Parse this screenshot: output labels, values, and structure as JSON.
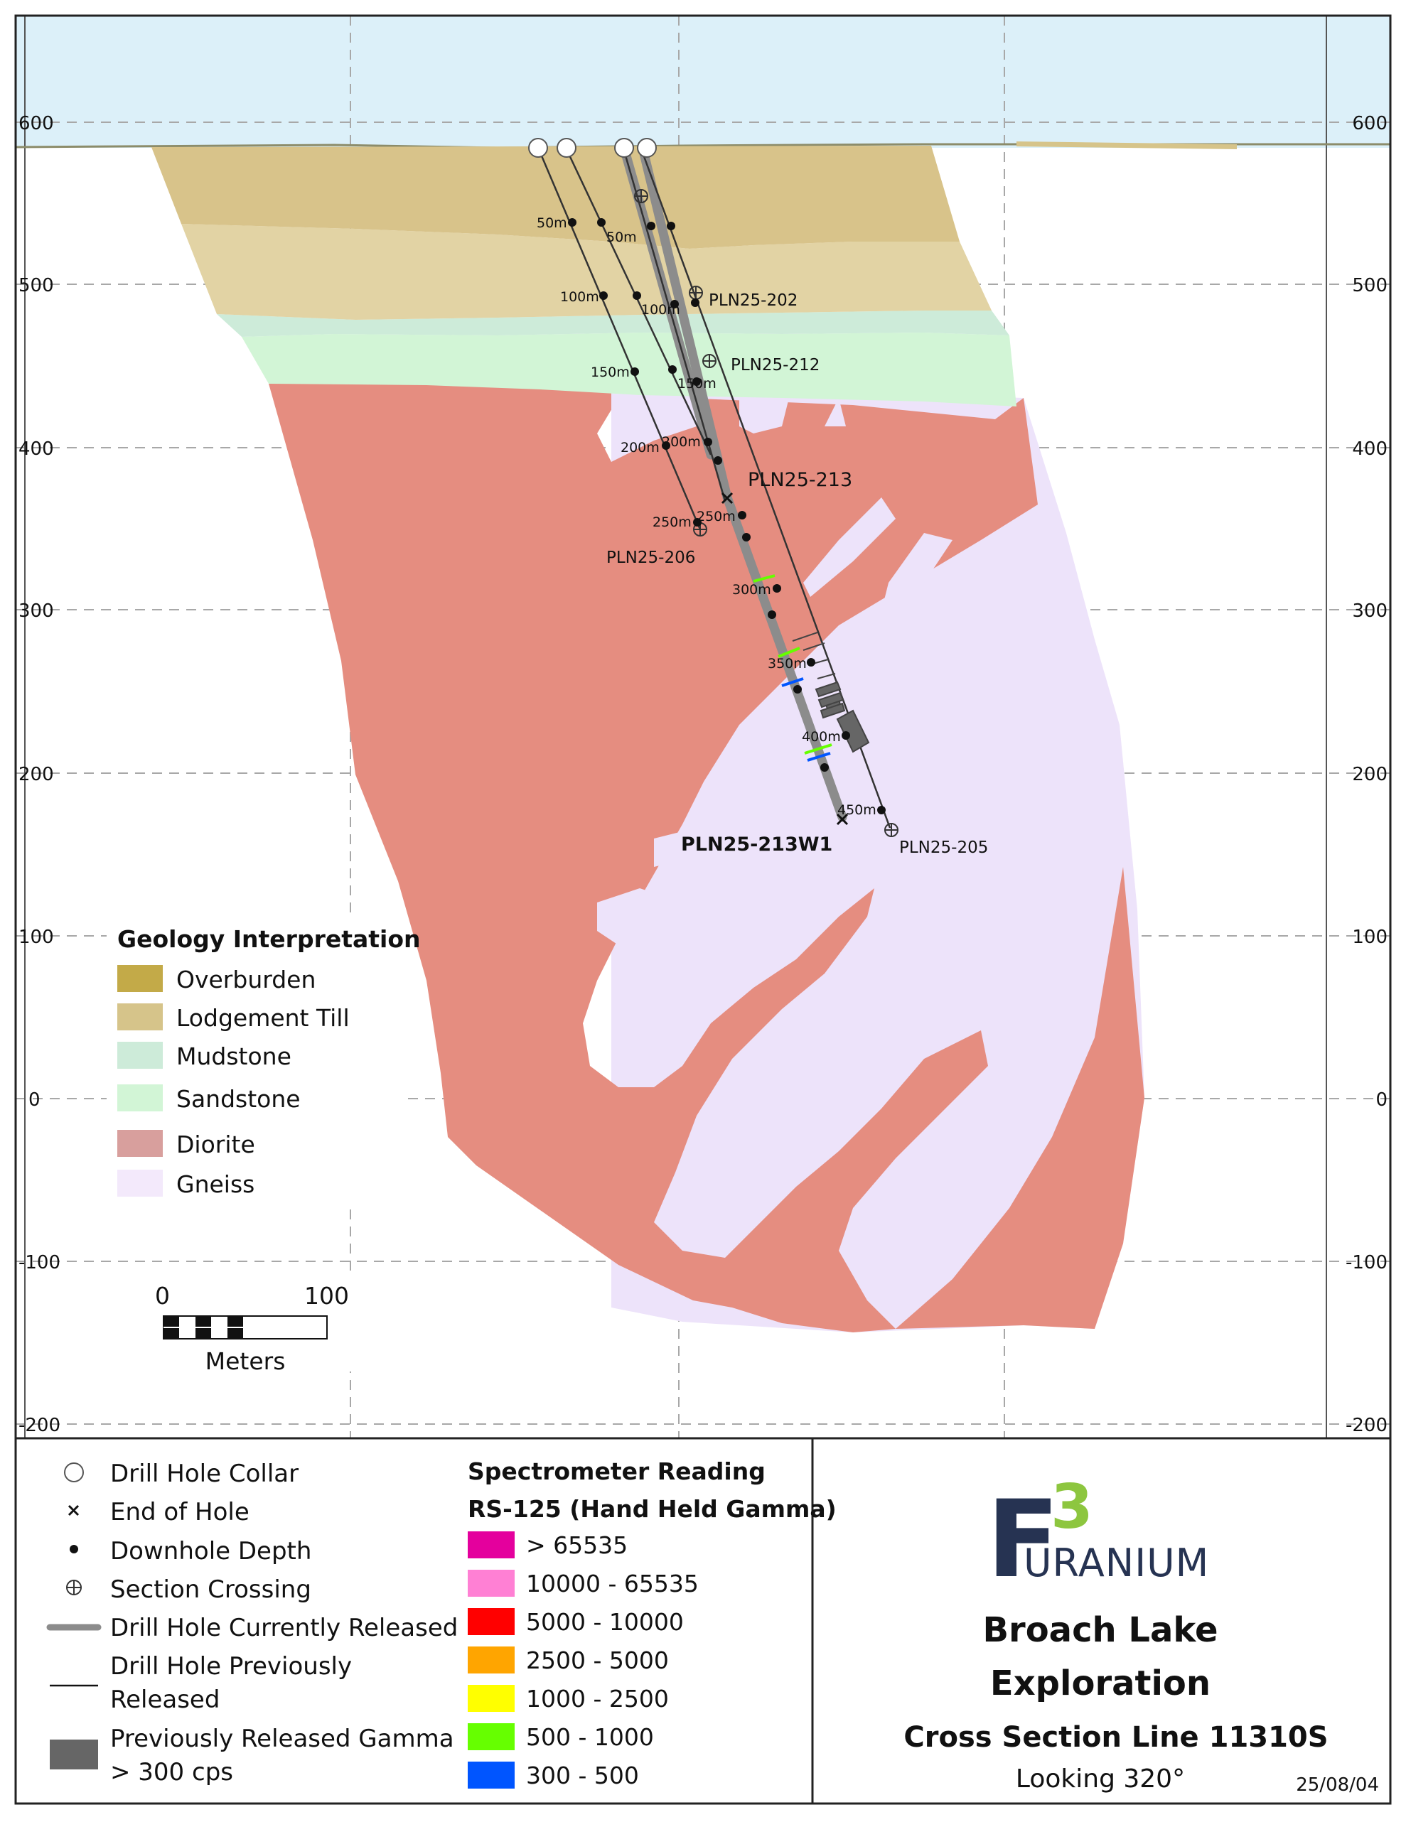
{
  "axis": {
    "elevation_labels": [
      "600",
      "500",
      "400",
      "300",
      "200",
      "100",
      "0",
      "-100",
      "-200"
    ]
  },
  "drill_holes": {
    "pln25_202": "PLN25-202",
    "pln25_212": "PLN25-212",
    "pln25_213": "PLN25-213",
    "pln25_206": "PLN25-206",
    "pln25_213w1": "PLN25-213W1",
    "pln25_205": "PLN25-205"
  },
  "depth_labels": {
    "d50a": "50m",
    "d50b": "50m",
    "d100a": "100m",
    "d100b": "100m",
    "d150a": "150m",
    "d150b": "150m",
    "d200a": "200m",
    "d200b": "200m",
    "d250a": "250m",
    "d250b": "250m",
    "d300": "300m",
    "d350": "350m",
    "d400": "400m",
    "d450": "450m"
  },
  "geology_legend": {
    "title": "Geology Interpretation",
    "items": [
      {
        "label": "Overburden",
        "color": "#c3aa48"
      },
      {
        "label": "Lodgement Till",
        "color": "#d6c48a"
      },
      {
        "label": "Mudstone",
        "color": "#cdebd9"
      },
      {
        "label": "Sandstone",
        "color": "#d2f5d6"
      },
      {
        "label": "Diorite",
        "color": "#d89f9d"
      },
      {
        "label": "Gneiss",
        "color": "#f3e9fb"
      }
    ]
  },
  "scale_bar": {
    "min": "0",
    "max": "100",
    "unit": "Meters"
  },
  "symbol_legend": {
    "collar": "Drill Hole Collar",
    "end_hole": "End of Hole",
    "downhole": "Downhole Depth",
    "crossing": "Section Crossing",
    "current": "Drill Hole Currently Released",
    "previous_1": "Drill Hole Previously",
    "previous_2": "Released",
    "gamma_1": "Previously Released Gamma",
    "gamma_2": "> 300 cps"
  },
  "spectrometer": {
    "title_1": "Spectrometer Reading",
    "title_2": "RS-125 (Hand Held Gamma)",
    "items": [
      {
        "label": "> 65535",
        "color": "#e4009d"
      },
      {
        "label": "10000 - 65535",
        "color": "#ff80d4"
      },
      {
        "label": "5000 - 10000",
        "color": "#ff0000"
      },
      {
        "label": "2500 - 5000",
        "color": "#ffa500"
      },
      {
        "label": "1000 - 2500",
        "color": "#ffff00"
      },
      {
        "label": "500 - 1000",
        "color": "#66ff00"
      },
      {
        "label": "300 - 500",
        "color": "#0055ff"
      }
    ]
  },
  "title_block": {
    "logo_f": "F",
    "logo_3": "3",
    "logo_word": "URANIUM",
    "project_1": "Broach Lake",
    "project_2": "Exploration",
    "section": "Cross Section Line 11310S",
    "looking": "Looking 320°",
    "date": "25/08/04"
  },
  "colors": {
    "sky": "#dcf0f9",
    "diorite": "#e58d80",
    "gneiss": "#ede3fa",
    "current_hole": "#8c8c8c",
    "gamma_block": "#666666",
    "logo_dark": "#263352",
    "logo_green": "#8dc63f"
  }
}
